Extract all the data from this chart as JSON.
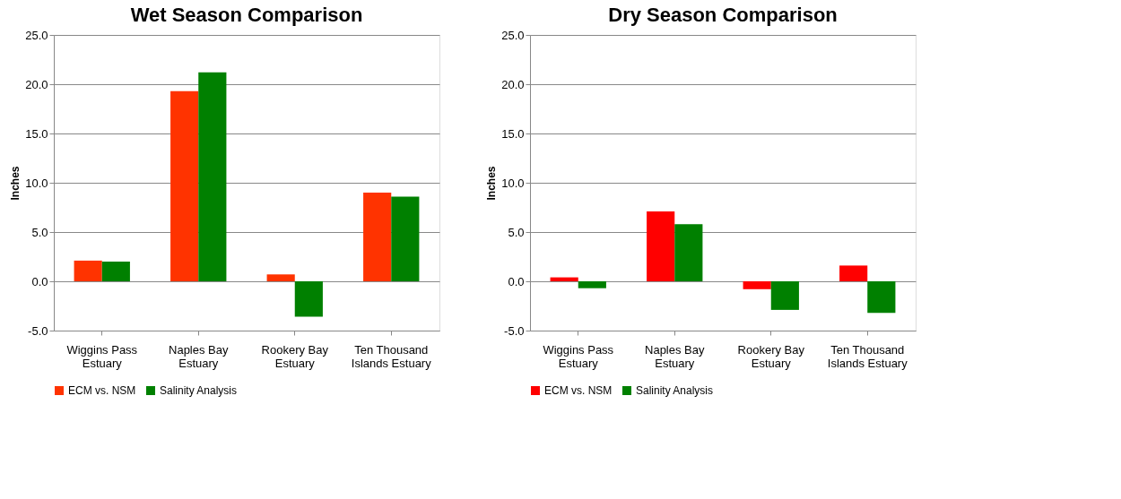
{
  "chart_data": [
    {
      "type": "bar",
      "title": "Wet Season Comparison",
      "ylabel": "Inches",
      "categories": [
        "Wiggins Pass Estuary",
        "Naples Bay Estuary",
        "Rookery Bay Estuary",
        "Ten Thousand Islands Estuary"
      ],
      "series": [
        {
          "name": "ECM vs. NSM",
          "color": "#ff3300",
          "values": [
            2.1,
            19.3,
            0.7,
            9.0
          ]
        },
        {
          "name": "Salinity Analysis",
          "color": "#008000",
          "values": [
            2.0,
            21.2,
            -3.6,
            8.6
          ]
        }
      ],
      "ylim": [
        -5,
        25
      ],
      "yticks": [
        {
          "value": -5,
          "label": "-5.0"
        },
        {
          "value": 0,
          "label": "0.0"
        },
        {
          "value": 5,
          "label": "5.0"
        },
        {
          "value": 10,
          "label": "10.0"
        },
        {
          "value": 15,
          "label": "15.0"
        },
        {
          "value": 20,
          "label": "20.0"
        },
        {
          "value": 25,
          "label": "25.0"
        }
      ],
      "grid": "y",
      "legend": "bottom"
    },
    {
      "type": "bar",
      "title": "Dry Season Comparison",
      "ylabel": "Inches",
      "categories": [
        "Wiggins Pass Estuary",
        "Naples Bay Estuary",
        "Rookery Bay Estuary",
        "Ten Thousand Islands Estuary"
      ],
      "series": [
        {
          "name": "ECM vs. NSM",
          "color": "#ff0000",
          "values": [
            0.4,
            7.1,
            -0.8,
            1.6
          ]
        },
        {
          "name": "Salinity Analysis",
          "color": "#008000",
          "values": [
            -0.7,
            5.8,
            -2.9,
            -3.2
          ]
        }
      ],
      "ylim": [
        -5,
        25
      ],
      "yticks": [
        {
          "value": -5,
          "label": "-5.0"
        },
        {
          "value": 0,
          "label": "0.0"
        },
        {
          "value": 5,
          "label": "5.0"
        },
        {
          "value": 10,
          "label": "10.0"
        },
        {
          "value": 15,
          "label": "15.0"
        },
        {
          "value": 20,
          "label": "20.0"
        },
        {
          "value": 25,
          "label": "25.0"
        }
      ],
      "grid": "y",
      "legend": "bottom"
    }
  ]
}
